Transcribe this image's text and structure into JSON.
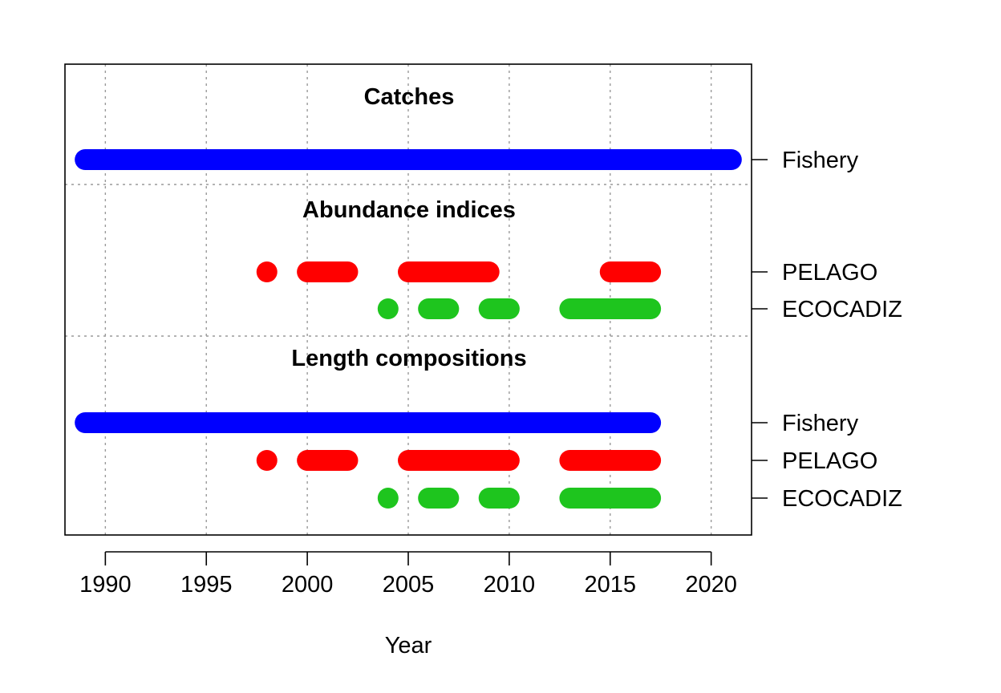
{
  "chart_data": {
    "type": "timeline",
    "xlabel": "Year",
    "xlim": [
      1988,
      2022
    ],
    "x_ticks": [
      1990,
      1995,
      2000,
      2005,
      2010,
      2015,
      2020
    ],
    "x_tick_labels": [
      "1990",
      "1995",
      "2000",
      "2005",
      "2010",
      "2015",
      "2020"
    ],
    "grid": true,
    "colors": {
      "blue": "#0000ff",
      "red": "#ff0000",
      "green": "#1ec51e"
    },
    "sections": [
      {
        "title": "Catches",
        "rows": [
          {
            "label": "Fishery",
            "color": "blue",
            "segments": [
              [
                1989,
                2021
              ]
            ]
          }
        ]
      },
      {
        "title": "Abundance indices",
        "rows": [
          {
            "label": "PELAGO",
            "color": "red",
            "segments": [
              [
                1998,
                1998
              ],
              [
                2000,
                2002
              ],
              [
                2005,
                2009
              ],
              [
                2015,
                2017
              ]
            ]
          },
          {
            "label": "ECOCADIZ",
            "color": "green",
            "segments": [
              [
                2004,
                2004
              ],
              [
                2006,
                2007
              ],
              [
                2009,
                2010
              ],
              [
                2013,
                2017
              ]
            ]
          }
        ]
      },
      {
        "title": "Length compositions",
        "rows": [
          {
            "label": "Fishery",
            "color": "blue",
            "segments": [
              [
                1989,
                2017
              ]
            ]
          },
          {
            "label": "PELAGO",
            "color": "red",
            "segments": [
              [
                1998,
                1998
              ],
              [
                2000,
                2002
              ],
              [
                2005,
                2010
              ],
              [
                2013,
                2017
              ]
            ]
          },
          {
            "label": "ECOCADIZ",
            "color": "green",
            "segments": [
              [
                2004,
                2004
              ],
              [
                2006,
                2007
              ],
              [
                2009,
                2010
              ],
              [
                2013,
                2017
              ]
            ]
          }
        ]
      }
    ]
  }
}
